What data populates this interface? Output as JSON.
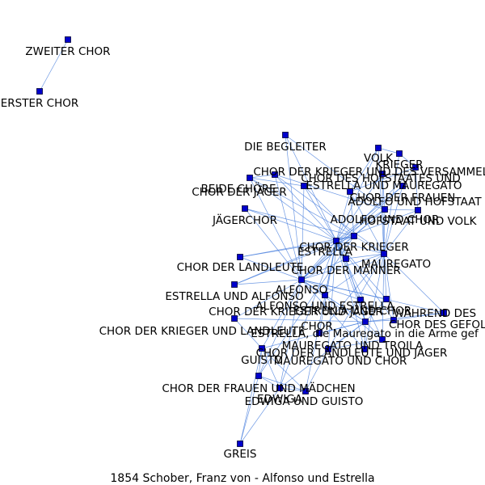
{
  "caption": "1854  Schober,  Franz  von  -  Alfonso  und  Estrella",
  "colors": {
    "node": "#0000cc",
    "edge": "#4a7fdd",
    "label": "#000000",
    "background": "#ffffff"
  },
  "nodes": [
    {
      "id": "zweiter-chor",
      "label": "ZWEITER CHOR"
    },
    {
      "id": "erster-chor",
      "label": "ERSTER CHOR"
    },
    {
      "id": "die-begleiter",
      "label": "DIE BEGLEITER"
    },
    {
      "id": "volk",
      "label": "VOLK"
    },
    {
      "id": "krieger",
      "label": "KRIEGER"
    },
    {
      "id": "chor-krieger-versammelten",
      "label": "CHOR DER KRIEGER UND DES VERSAMMELTEN VOLKES"
    },
    {
      "id": "chor-hofstaates",
      "label": "CHOR DES HOFSTAATES UND"
    },
    {
      "id": "beide-chore",
      "label": "BEIDE CHÖRE"
    },
    {
      "id": "estrella-mauregato",
      "label": "ESTRELLA UND MAUREGATO"
    },
    {
      "id": "chor-jager",
      "label": "CHOR DER JÄGER"
    },
    {
      "id": "chor-frauen",
      "label": "CHOR DER FRAUEN"
    },
    {
      "id": "adolfo-hofstaat",
      "label": "ADOLFO UND HOFSTAAT"
    },
    {
      "id": "jagerchor",
      "label": "JÄGERCHOR"
    },
    {
      "id": "adolfo-chor",
      "label": "ADOLFO UND CHOR"
    },
    {
      "id": "hofstaat-volk",
      "label": "HOFSTAAT UND VOLK"
    },
    {
      "id": "chor-der-krieger",
      "label": "CHOR DER KRIEGER"
    },
    {
      "id": "estrella",
      "label": "ESTRELLA"
    },
    {
      "id": "mauregato",
      "label": "MAUREGATO"
    },
    {
      "id": "chor-landleute",
      "label": "CHOR DER LANDLEUTE"
    },
    {
      "id": "chor-manner",
      "label": "CHOR DER MÄNNER"
    },
    {
      "id": "alfonso",
      "label": "ALFONSO"
    },
    {
      "id": "estrella-alfonso",
      "label": "ESTRELLA UND ALFONSO"
    },
    {
      "id": "alfonso-estrella",
      "label": "ALFONSO UND ESTRELLA"
    },
    {
      "id": "estrella-chor",
      "label": "ESTRELLA UND CHOR"
    },
    {
      "id": "chor-krieger-jager",
      "label": "CHOR DER KRIEGER UND JÄGER"
    },
    {
      "id": "wahrend-des",
      "label": "WÄHREND DES"
    },
    {
      "id": "chor-gefolges",
      "label": "CHOR DES GEFOLGES"
    },
    {
      "id": "chor-krieger-landleute",
      "label": "CHOR DER KRIEGER UND LANDLEUTE"
    },
    {
      "id": "chor",
      "label": "CHOR"
    },
    {
      "id": "estrella-in-die-arme",
      "label": "ESTRELLA, die Mauregato in die Arme gef"
    },
    {
      "id": "mauregato-troila",
      "label": "MAUREGATO UND TROILA"
    },
    {
      "id": "chor-landleute-jager",
      "label": "CHOR DER LANDLEUTE UND JÄGER"
    },
    {
      "id": "guisto",
      "label": "GUISTO"
    },
    {
      "id": "mauregato-chor",
      "label": "MAUREGATO UND CHOR"
    },
    {
      "id": "chor-frauen-madchen",
      "label": "CHOR DER FRAUEN UND MÄDCHEN"
    },
    {
      "id": "edwiga",
      "label": "EDWIGA"
    },
    {
      "id": "edwiga-guisto",
      "label": "EDWIGA UND GUISTO"
    },
    {
      "id": "greis",
      "label": "GREIS"
    }
  ],
  "edges": [
    [
      "zweiter-chor",
      "erster-chor"
    ],
    [
      "die-begleiter",
      "estrella"
    ],
    [
      "die-begleiter",
      "alfonso"
    ],
    [
      "die-begleiter",
      "adolfo-chor"
    ],
    [
      "volk",
      "krieger"
    ],
    [
      "volk",
      "adolfo-hofstaat"
    ],
    [
      "volk",
      "mauregato"
    ],
    [
      "volk",
      "estrella"
    ],
    [
      "krieger",
      "chor-krieger-versammelten"
    ],
    [
      "krieger",
      "mauregato"
    ],
    [
      "chor-krieger-versammelten",
      "adolfo-hofstaat"
    ],
    [
      "chor-krieger-versammelten",
      "hofstaat-volk"
    ],
    [
      "chor-krieger-versammelten",
      "alfonso"
    ],
    [
      "chor-hofstaates",
      "mauregato"
    ],
    [
      "chor-hofstaates",
      "estrella"
    ],
    [
      "chor-hofstaates",
      "adolfo-chor"
    ],
    [
      "beide-chore",
      "estrella"
    ],
    [
      "beide-chore",
      "alfonso"
    ],
    [
      "beide-chore",
      "chor-der-krieger"
    ],
    [
      "beide-chore",
      "estrella-mauregato"
    ],
    [
      "estrella-mauregato",
      "mauregato"
    ],
    [
      "estrella-mauregato",
      "estrella"
    ],
    [
      "estrella-mauregato",
      "adolfo-chor"
    ],
    [
      "estrella-mauregato",
      "alfonso"
    ],
    [
      "chor-jager",
      "estrella"
    ],
    [
      "chor-jager",
      "alfonso"
    ],
    [
      "chor-jager",
      "chor-der-krieger"
    ],
    [
      "chor-jager",
      "beide-chore"
    ],
    [
      "chor-frauen",
      "mauregato"
    ],
    [
      "chor-frauen",
      "estrella"
    ],
    [
      "chor-frauen",
      "alfonso"
    ],
    [
      "adolfo-hofstaat",
      "mauregato"
    ],
    [
      "adolfo-hofstaat",
      "estrella"
    ],
    [
      "adolfo-hofstaat",
      "chor-der-krieger"
    ],
    [
      "jagerchor",
      "estrella"
    ],
    [
      "jagerchor",
      "alfonso"
    ],
    [
      "jagerchor",
      "chor-der-krieger"
    ],
    [
      "adolfo-chor",
      "mauregato"
    ],
    [
      "adolfo-chor",
      "estrella"
    ],
    [
      "adolfo-chor",
      "alfonso"
    ],
    [
      "adolfo-chor",
      "chor-der-krieger"
    ],
    [
      "hofstaat-volk",
      "mauregato"
    ],
    [
      "hofstaat-volk",
      "estrella"
    ],
    [
      "hofstaat-volk",
      "adolfo-chor"
    ],
    [
      "chor-der-krieger",
      "estrella"
    ],
    [
      "chor-der-krieger",
      "mauregato"
    ],
    [
      "chor-der-krieger",
      "alfonso"
    ],
    [
      "estrella",
      "mauregato"
    ],
    [
      "estrella",
      "alfonso"
    ],
    [
      "estrella",
      "chor-manner"
    ],
    [
      "estrella",
      "alfonso-estrella"
    ],
    [
      "estrella",
      "chor"
    ],
    [
      "estrella",
      "estrella-chor"
    ],
    [
      "estrella",
      "chor-landleute"
    ],
    [
      "mauregato",
      "alfonso"
    ],
    [
      "mauregato",
      "chor-manner"
    ],
    [
      "mauregato",
      "mauregato-troila"
    ],
    [
      "mauregato",
      "chor-gefolges"
    ],
    [
      "mauregato",
      "mauregato-chor"
    ],
    [
      "mauregato",
      "estrella-in-die-arme"
    ],
    [
      "chor-landleute",
      "alfonso"
    ],
    [
      "chor-landleute",
      "chor-der-krieger"
    ],
    [
      "chor-manner",
      "alfonso"
    ],
    [
      "chor-manner",
      "chor"
    ],
    [
      "alfonso",
      "estrella-alfonso"
    ],
    [
      "alfonso",
      "alfonso-estrella"
    ],
    [
      "alfonso",
      "chor"
    ],
    [
      "alfonso",
      "chor-krieger-landleute"
    ],
    [
      "alfonso",
      "chor-krieger-jager"
    ],
    [
      "alfonso",
      "guisto"
    ],
    [
      "alfonso",
      "edwiga"
    ],
    [
      "alfonso",
      "chor-frauen-madchen"
    ],
    [
      "alfonso",
      "estrella-chor"
    ],
    [
      "alfonso",
      "mauregato-troila"
    ],
    [
      "alfonso",
      "chor-landleute-jager"
    ],
    [
      "alfonso",
      "wahrend-des"
    ],
    [
      "estrella-alfonso",
      "estrella"
    ],
    [
      "estrella-alfonso",
      "chor-der-krieger"
    ],
    [
      "alfonso-estrella",
      "chor"
    ],
    [
      "alfonso-estrella",
      "mauregato"
    ],
    [
      "estrella-chor",
      "chor"
    ],
    [
      "estrella-chor",
      "mauregato"
    ],
    [
      "chor-krieger-jager",
      "chor"
    ],
    [
      "chor-krieger-jager",
      "estrella"
    ],
    [
      "wahrend-des",
      "chor"
    ],
    [
      "wahrend-des",
      "mauregato"
    ],
    [
      "wahrend-des",
      "chor-gefolges"
    ],
    [
      "chor-gefolges",
      "chor"
    ],
    [
      "chor-gefolges",
      "estrella"
    ],
    [
      "chor-krieger-landleute",
      "chor"
    ],
    [
      "chor-krieger-landleute",
      "guisto"
    ],
    [
      "chor",
      "mauregato-troila"
    ],
    [
      "chor",
      "estrella-in-die-arme"
    ],
    [
      "chor",
      "mauregato-chor"
    ],
    [
      "chor",
      "guisto"
    ],
    [
      "chor",
      "edwiga"
    ],
    [
      "chor",
      "chor-landleute-jager"
    ],
    [
      "estrella-in-die-arme",
      "estrella"
    ],
    [
      "mauregato-troila",
      "mauregato-chor"
    ],
    [
      "mauregato-troila",
      "estrella"
    ],
    [
      "chor-landleute-jager",
      "estrella"
    ],
    [
      "chor-landleute-jager",
      "mauregato"
    ],
    [
      "guisto",
      "edwiga"
    ],
    [
      "guisto",
      "chor-frauen-madchen"
    ],
    [
      "guisto",
      "edwiga-guisto"
    ],
    [
      "guisto",
      "greis"
    ],
    [
      "mauregato-chor",
      "estrella"
    ],
    [
      "mauregato-chor",
      "edwiga-guisto"
    ],
    [
      "chor-frauen-madchen",
      "edwiga"
    ],
    [
      "chor-frauen-madchen",
      "greis"
    ],
    [
      "chor-frauen-madchen",
      "edwiga-guisto"
    ],
    [
      "edwiga",
      "edwiga-guisto"
    ],
    [
      "edwiga",
      "greis"
    ],
    [
      "edwiga-guisto",
      "estrella"
    ],
    [
      "edwiga",
      "estrella"
    ],
    [
      "chor-frauen-madchen",
      "chor-der-krieger"
    ]
  ]
}
